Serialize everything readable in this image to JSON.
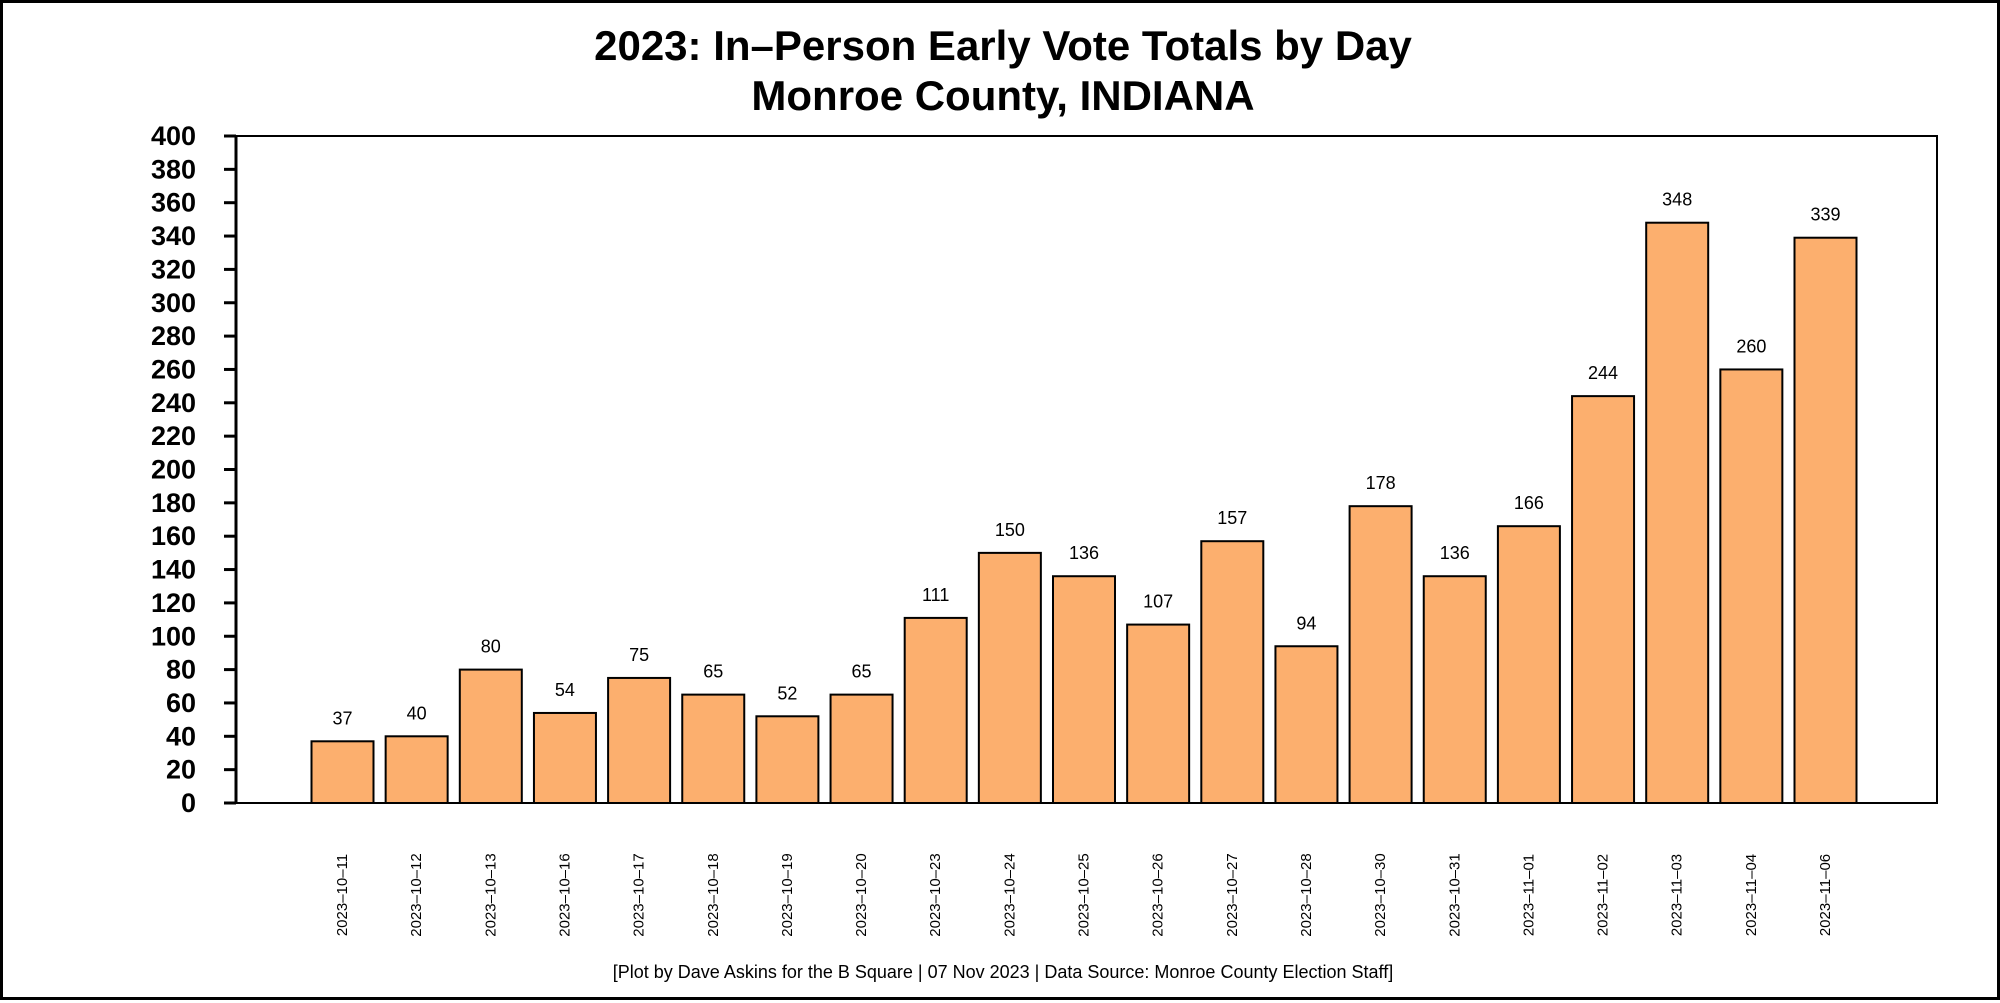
{
  "chart_data": {
    "type": "bar",
    "title": "2023: In–Person Early Vote Totals by Day",
    "subtitle": "Monroe County, INDIANA",
    "xlabel": "",
    "ylabel": "",
    "ylim": [
      0,
      400
    ],
    "yticks": [
      0,
      20,
      40,
      60,
      80,
      100,
      120,
      140,
      160,
      180,
      200,
      220,
      240,
      260,
      280,
      300,
      320,
      340,
      360,
      380,
      400
    ],
    "categories": [
      "2023–10–11",
      "2023–10–12",
      "2023–10–13",
      "2023–10–16",
      "2023–10–17",
      "2023–10–18",
      "2023–10–19",
      "2023–10–20",
      "2023–10–23",
      "2023–10–24",
      "2023–10–25",
      "2023–10–26",
      "2023–10–27",
      "2023–10–28",
      "2023–10–30",
      "2023–10–31",
      "2023–11–01",
      "2023–11–02",
      "2023–11–03",
      "2023–11–04",
      "2023–11–06"
    ],
    "values": [
      37,
      40,
      80,
      54,
      75,
      65,
      52,
      65,
      111,
      150,
      136,
      107,
      157,
      94,
      178,
      136,
      166,
      244,
      348,
      260,
      339
    ],
    "data_labels": true,
    "bar_color": "#fcaf6e",
    "bar_edge_color": "#000000",
    "grid": false,
    "legend": "none",
    "footer": "[Plot by Dave Askins for the B Square | 07 Nov 2023 | Data Source: Monroe County Election Staff]"
  }
}
